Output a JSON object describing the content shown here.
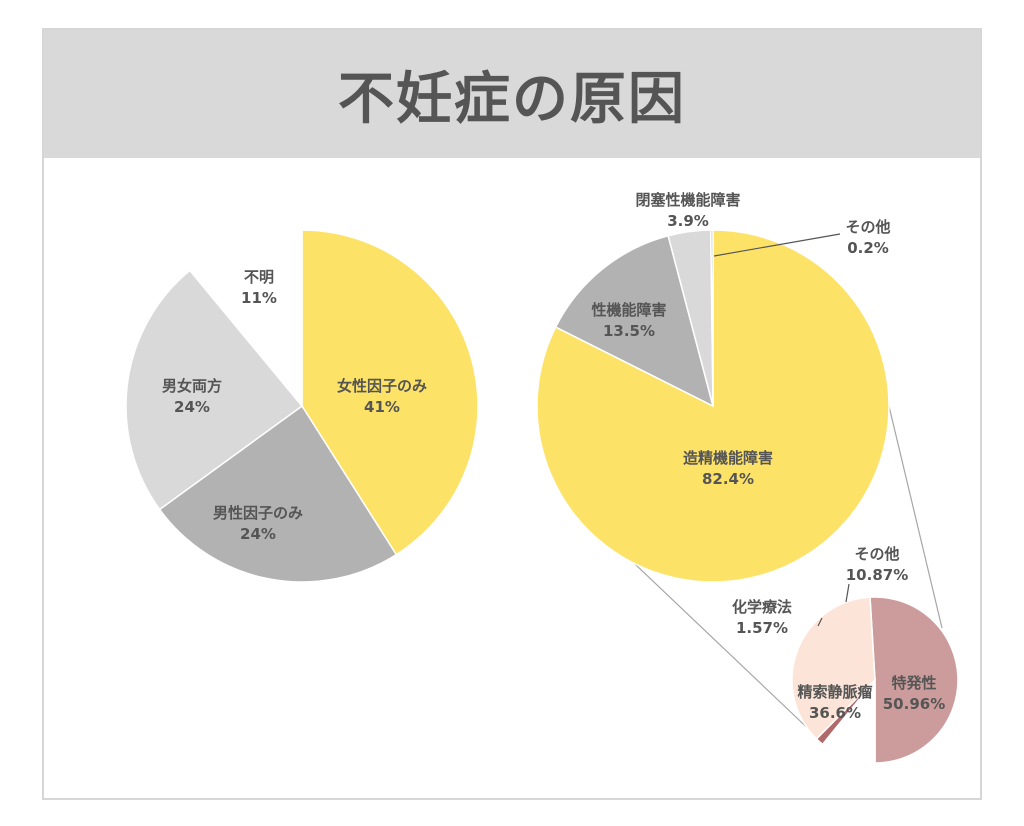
{
  "title": "不妊症の原因",
  "chart_data": [
    {
      "type": "pie",
      "categories": [
        "女性因子のみ",
        "男性因子のみ",
        "男女両方",
        "不明"
      ],
      "values": [
        41,
        24,
        24,
        11
      ],
      "value_labels": [
        "41%",
        "24%",
        "24%",
        "11%"
      ],
      "colors": [
        "#fde268",
        "#b2b2b2",
        "#d9d9d9",
        "#ffffff"
      ]
    },
    {
      "type": "pie",
      "categories": [
        "造精機能障害",
        "性機能障害",
        "閉塞性機能障害",
        "その他"
      ],
      "values": [
        82.4,
        13.5,
        3.9,
        0.2
      ],
      "value_labels": [
        "82.4%",
        "13.5%",
        "3.9%",
        "0.2%"
      ],
      "colors": [
        "#fde268",
        "#b2b2b2",
        "#d9d9d9",
        "#bbbbbb"
      ]
    },
    {
      "type": "pie",
      "categories": [
        "特発性",
        "精索静脈瘤",
        "化学療法",
        "その他"
      ],
      "values": [
        50.96,
        36.6,
        1.57,
        10.87
      ],
      "value_labels": [
        "50.96%",
        "36.6%",
        "1.57%",
        "10.87%"
      ],
      "colors": [
        "#cc9c9c",
        "#fce4d8",
        "#b06a6a",
        "#ffffff"
      ]
    }
  ]
}
